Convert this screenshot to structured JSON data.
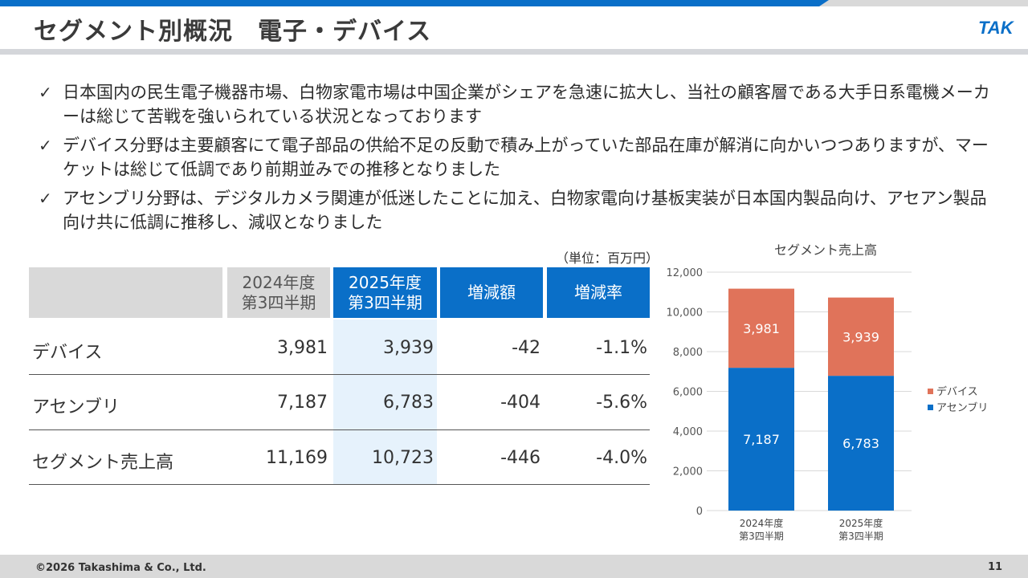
{
  "header": {
    "title": "セグメント別概況　電子・デバイス",
    "logo_text": "TAK",
    "accent_color": "#0a6fc8"
  },
  "bullets": [
    "日本国内の民生電子機器市場、白物家電市場は中国企業がシェアを急速に拡大し、当社の顧客層である大手日系電機メーカーは総じて苦戦を強いられている状況となっております",
    "デバイス分野は主要顧客にて電子部品の供給不足の反動で積み上がっていた部品在庫が解消に向かいつつありますが、マーケットは総じて低調であり前期並みでの推移となりました",
    "アセンブリ分野は、デジタルカメラ関連が低迷したことに加え、白物家電向け基板実装が日本国内製品向け、アセアン製品向け共に低調に推移し、減収となりました"
  ],
  "table": {
    "unit": "（単位：百万円）",
    "headers": {
      "fy2024": [
        "2024年度",
        "第3四半期"
      ],
      "fy2025": [
        "2025年度",
        "第3四半期"
      ],
      "diff": "増減額",
      "rate": "増減率"
    },
    "rows": [
      {
        "label": "デバイス",
        "fy2024": "3,981",
        "fy2025": "3,939",
        "diff": "-42",
        "rate": "-1.1%"
      },
      {
        "label": "アセンブリ",
        "fy2024": "7,187",
        "fy2025": "6,783",
        "diff": "-404",
        "rate": "-5.6%"
      },
      {
        "label": "セグメント売上高",
        "fy2024": "11,169",
        "fy2025": "10,723",
        "diff": "-446",
        "rate": "-4.0%"
      }
    ]
  },
  "chart_data": {
    "type": "bar",
    "stacked": true,
    "title": "セグメント売上高",
    "categories": [
      [
        "2024年度",
        "第3四半期"
      ],
      [
        "2025年度",
        "第3四半期"
      ]
    ],
    "series": [
      {
        "name": "アセンブリ",
        "values": [
          7187,
          6783
        ],
        "labels": [
          "7,187",
          "6,783"
        ],
        "color": "#0a6fc8"
      },
      {
        "name": "デバイス",
        "values": [
          3981,
          3939
        ],
        "labels": [
          "3,981",
          "3,939"
        ],
        "color": "#e0735a"
      }
    ],
    "ylim": [
      0,
      12000
    ],
    "yticks": [
      0,
      2000,
      4000,
      6000,
      8000,
      10000,
      12000
    ],
    "ytick_labels": [
      "0",
      "2,000",
      "4,000",
      "6,000",
      "8,000",
      "10,000",
      "12,000"
    ],
    "legend": [
      "デバイス",
      "アセンブリ"
    ],
    "legend_position": "right",
    "grid": true
  },
  "footer": {
    "copyright": "©2026 Takashima & Co., Ltd.",
    "page_number": "11"
  }
}
